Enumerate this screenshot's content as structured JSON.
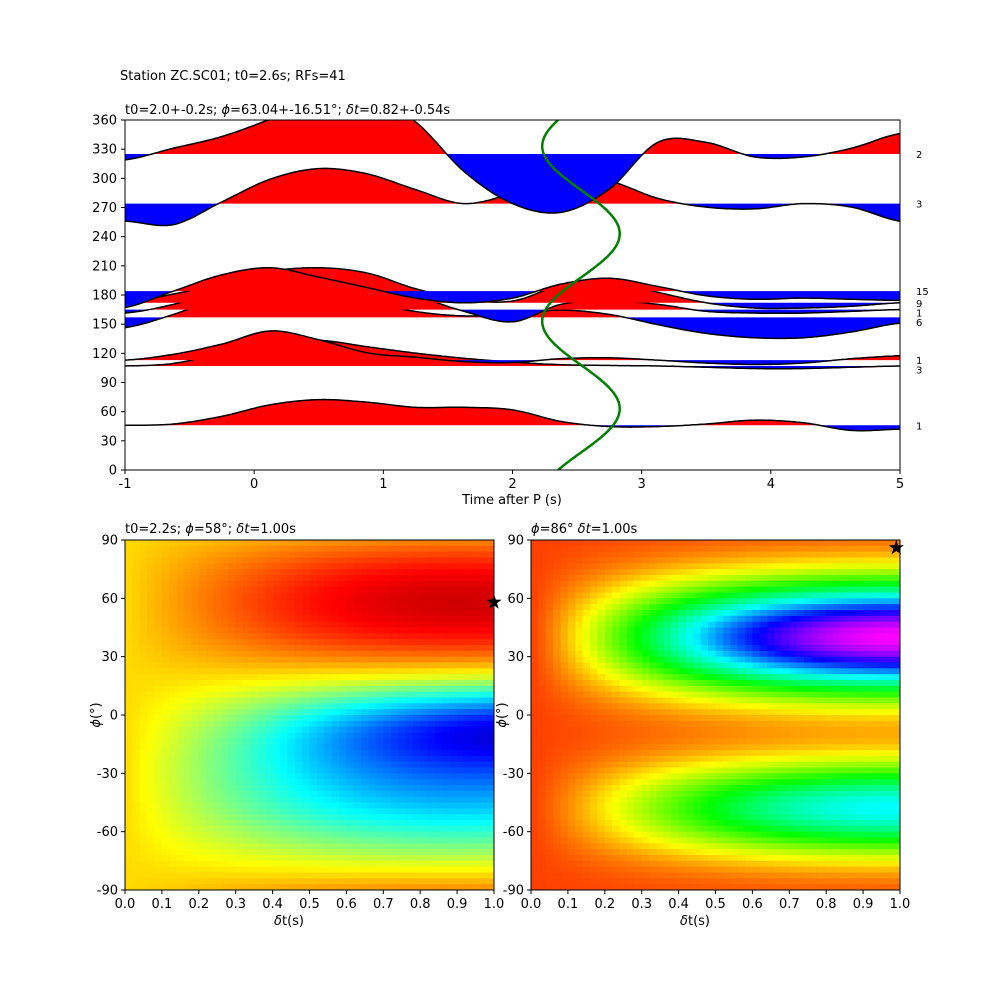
{
  "suptitle": "Station ZC.SC01; t0=2.6s; RFs=41",
  "chart_data": [
    {
      "type": "line",
      "subtype": "back-azimuth-binned receiver function wiggles",
      "title": "t0=2.0+-0.2s; ϕ=63.04+-16.51°; δt=0.82+-0.54s",
      "title_plain": "t0=2.0+-0.2s; ",
      "title_phi": "ϕ",
      "title_rest": "=63.04+-16.51°; ",
      "title_dt": "δt",
      "title_rest2": "=0.82+-0.54s",
      "xlabel": "Time after P (s)",
      "ylabel": "",
      "xlim": [
        -1,
        5
      ],
      "ylim": [
        0,
        360
      ],
      "xticks": [
        "-1",
        "0",
        "1",
        "2",
        "3",
        "4",
        "5"
      ],
      "yticks": [
        "0",
        "30",
        "60",
        "90",
        "120",
        "150",
        "180",
        "210",
        "240",
        "270",
        "300",
        "330",
        "360"
      ],
      "positive_fill": "#ff0000",
      "negative_fill": "#0000ff",
      "curve_color": "#008000",
      "traces": [
        {
          "baz": 46,
          "count_label": "1",
          "amp_scale": 30,
          "peak": 0.22,
          "y": [
            0,
            0.05,
            0.35,
            0.8,
            1,
            0.9,
            0.7,
            0.7,
            0.6,
            0.15,
            -0.05,
            -0.05,
            0.05,
            0.2,
            0.1,
            -0.2,
            -0.15
          ]
        },
        {
          "baz": 107,
          "count_label": "3",
          "amp_scale": 30,
          "peak": 0.22,
          "y": [
            0,
            0.1,
            0.5,
            0.9,
            1,
            0.75,
            0.5,
            0.3,
            0.15,
            0.05,
            0.02,
            0,
            -0.05,
            -0.1,
            -0.1,
            -0.05,
            0
          ]
        },
        {
          "baz": 113,
          "count_label": "1",
          "amp_scale": 30,
          "peak": 0.25,
          "y": [
            0,
            0.2,
            0.55,
            1.0,
            0.7,
            0.25,
            0.1,
            -0.05,
            -0.08,
            0.05,
            0.08,
            0.0,
            -0.1,
            -0.15,
            -0.1,
            0.05,
            0.15
          ]
        },
        {
          "baz": 157,
          "count_label": "6",
          "amp_scale": 30,
          "peak": 0.25,
          "y": [
            -0.35,
            0.1,
            0.7,
            1.0,
            0.95,
            0.55,
            0.2,
            0.05,
            0.1,
            0.25,
            0.1,
            -0.25,
            -0.55,
            -0.7,
            -0.7,
            -0.5,
            -0.2
          ]
        },
        {
          "baz": 165,
          "count_label": "1",
          "amp_scale": 30,
          "peak": 0.3,
          "y": [
            -0.1,
            0.15,
            0.55,
            0.9,
            1.0,
            0.8,
            0.4,
            -0.05,
            -0.35,
            0.15,
            0.25,
            0.15,
            -0.05,
            -0.1,
            -0.1,
            -0.05,
            0
          ]
        },
        {
          "baz": 172,
          "count_label": "9",
          "amp_scale": 30,
          "peak": 0.3,
          "y": [
            0,
            0.25,
            0.55,
            0.9,
            1.0,
            0.85,
            0.4,
            0.1,
            0.05,
            0.5,
            0.6,
            0.3,
            0.0,
            -0.15,
            -0.15,
            -0.1,
            0
          ]
        },
        {
          "baz": 184,
          "count_label": "15",
          "amp_scale": 30,
          "peak": 0.2,
          "y": [
            -0.7,
            0.0,
            0.7,
            1.0,
            0.6,
            0.15,
            -0.3,
            -0.5,
            -0.3,
            0.3,
            0.55,
            0.2,
            -0.2,
            -0.35,
            -0.3,
            -0.35,
            -0.4
          ]
        },
        {
          "baz": 274,
          "count_label": "3",
          "amp_scale": 30,
          "peak": 0.3,
          "y": [
            -0.5,
            -0.6,
            0.05,
            0.7,
            1.0,
            0.85,
            0.4,
            0.0,
            0.3,
            0.8,
            0.65,
            0.15,
            -0.1,
            -0.15,
            0.0,
            -0.1,
            -0.5
          ]
        },
        {
          "baz": 325,
          "count_label": "2",
          "amp_scale": 30,
          "peak": 0.5,
          "y": [
            -0.1,
            0.1,
            0.3,
            0.6,
            0.95,
            1.0,
            0.55,
            -0.3,
            -0.85,
            -1.0,
            -0.6,
            0.2,
            0.2,
            -0.05,
            -0.05,
            0.1,
            0.35
          ]
        }
      ],
      "green_curve": {
        "center_x": 2.53,
        "amplitude": 0.3,
        "period_deg": 180,
        "phase_deg": 63
      }
    },
    {
      "type": "heatmap",
      "title": "t0=2.2s; ϕ=58°; δt=1.00s",
      "title_plain": "t0=2.2s; ",
      "title_phi": "ϕ",
      "title_rest": "=58°; ",
      "title_dt": "δt",
      "title_rest2": "=1.00s",
      "xlabel_sym": "δ",
      "xlabel_rest": "t(s)",
      "ylabel_sym": "ϕ",
      "ylabel_rest": "(°)",
      "xlim": [
        0,
        1
      ],
      "ylim": [
        -90,
        90
      ],
      "xticks": [
        "0.0",
        "0.1",
        "0.2",
        "0.3",
        "0.4",
        "0.5",
        "0.6",
        "0.7",
        "0.8",
        "0.9",
        "1.0"
      ],
      "yticks": [
        "-90",
        "-60",
        "-30",
        "0",
        "30",
        "60",
        "90"
      ],
      "colormap": "jet",
      "best": {
        "dt": 1.0,
        "phi": 58
      }
    },
    {
      "type": "heatmap",
      "title": "ϕ=86° δt=1.00s",
      "title_plain": "",
      "title_phi": "ϕ",
      "title_rest": "=86° ",
      "title_dt": "δt",
      "title_rest2": "=1.00s",
      "xlabel_sym": "δ",
      "xlabel_rest": "t(s)",
      "ylabel_sym": "ϕ",
      "ylabel_rest": "(°)",
      "xlim": [
        0,
        1
      ],
      "ylim": [
        -90,
        90
      ],
      "xticks": [
        "0.0",
        "0.1",
        "0.2",
        "0.3",
        "0.4",
        "0.5",
        "0.6",
        "0.7",
        "0.8",
        "0.9",
        "1.0"
      ],
      "yticks": [
        "-90",
        "-60",
        "-30",
        "0",
        "30",
        "60",
        "90"
      ],
      "colormap": "hsv",
      "best": {
        "dt": 0.99,
        "phi": 86
      }
    }
  ]
}
